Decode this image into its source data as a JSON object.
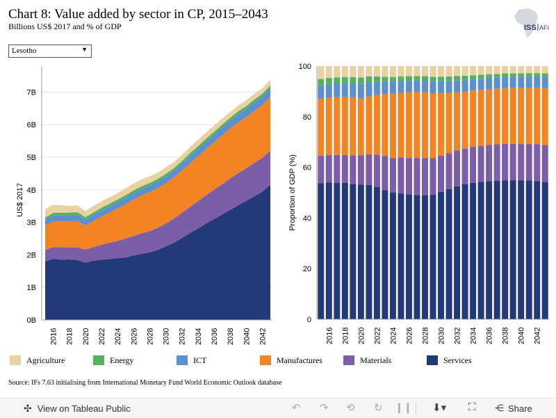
{
  "header": {
    "title": "Chart 8: Value added by sector in CP, 2015–2043",
    "subtitle": "Billions US$ 2017 and % of GDP",
    "logo_text": "ISS|AFI"
  },
  "filter": {
    "selected": "Lesotho"
  },
  "colors": {
    "Services": "#23397a",
    "Materials": "#7b5ea7",
    "Manufactures": "#f28423",
    "ICT": "#5b8fcf",
    "Energy": "#55b160",
    "Agriculture": "#e8d2a1"
  },
  "chart_data": [
    {
      "type": "area",
      "stacked": true,
      "ylabel": "US$ 2017",
      "yticks": [
        "0B",
        "1B",
        "2B",
        "3B",
        "4B",
        "5B",
        "6B",
        "7B"
      ],
      "ylim": [
        0,
        7.8
      ],
      "xticks": [
        "2016",
        "2018",
        "2020",
        "2022",
        "2024",
        "2026",
        "2028",
        "2030",
        "2032",
        "2034",
        "2036",
        "2038",
        "2040",
        "2042"
      ],
      "x": [
        2015,
        2016,
        2017,
        2018,
        2019,
        2020,
        2021,
        2022,
        2023,
        2024,
        2025,
        2026,
        2027,
        2028,
        2029,
        2030,
        2031,
        2032,
        2033,
        2034,
        2035,
        2036,
        2037,
        2038,
        2039,
        2040,
        2041,
        2042,
        2043
      ],
      "series": [
        {
          "name": "Services",
          "values": [
            1.8,
            1.88,
            1.85,
            1.86,
            1.84,
            1.76,
            1.82,
            1.85,
            1.87,
            1.9,
            1.92,
            1.98,
            2.03,
            2.08,
            2.15,
            2.26,
            2.37,
            2.52,
            2.67,
            2.81,
            2.96,
            3.1,
            3.24,
            3.38,
            3.52,
            3.66,
            3.8,
            3.94,
            4.15
          ]
        },
        {
          "name": "Materials",
          "values": [
            0.35,
            0.36,
            0.38,
            0.37,
            0.39,
            0.4,
            0.42,
            0.46,
            0.5,
            0.53,
            0.58,
            0.6,
            0.63,
            0.65,
            0.68,
            0.7,
            0.74,
            0.77,
            0.8,
            0.84,
            0.87,
            0.9,
            0.93,
            0.96,
            0.99,
            1.0,
            1.02,
            1.04,
            1.05
          ]
        },
        {
          "name": "Manufactures",
          "values": [
            0.75,
            0.79,
            0.8,
            0.8,
            0.81,
            0.74,
            0.8,
            0.87,
            0.93,
            1.0,
            1.05,
            1.12,
            1.17,
            1.2,
            1.22,
            1.24,
            1.26,
            1.3,
            1.34,
            1.38,
            1.42,
            1.46,
            1.5,
            1.54,
            1.56,
            1.57,
            1.6,
            1.62,
            1.65
          ]
        },
        {
          "name": "ICT",
          "values": [
            0.17,
            0.18,
            0.18,
            0.19,
            0.19,
            0.18,
            0.18,
            0.19,
            0.19,
            0.19,
            0.2,
            0.2,
            0.2,
            0.2,
            0.2,
            0.21,
            0.21,
            0.21,
            0.22,
            0.22,
            0.23,
            0.23,
            0.24,
            0.24,
            0.25,
            0.25,
            0.26,
            0.26,
            0.27
          ]
        },
        {
          "name": "Energy",
          "values": [
            0.08,
            0.08,
            0.08,
            0.08,
            0.08,
            0.08,
            0.08,
            0.08,
            0.08,
            0.08,
            0.08,
            0.08,
            0.08,
            0.08,
            0.08,
            0.08,
            0.08,
            0.08,
            0.09,
            0.09,
            0.09,
            0.09,
            0.09,
            0.09,
            0.09,
            0.09,
            0.09,
            0.09,
            0.09
          ]
        },
        {
          "name": "Agriculture",
          "values": [
            0.25,
            0.25,
            0.23,
            0.2,
            0.21,
            0.19,
            0.2,
            0.2,
            0.2,
            0.2,
            0.21,
            0.21,
            0.21,
            0.2,
            0.2,
            0.2,
            0.19,
            0.19,
            0.19,
            0.19,
            0.19,
            0.19,
            0.19,
            0.18,
            0.18,
            0.18,
            0.18,
            0.17,
            0.17
          ]
        }
      ]
    },
    {
      "type": "bar",
      "stacked": true,
      "ylabel": "Proportion of GDP (%)",
      "yticks": [
        "0",
        "20",
        "40",
        "60",
        "80",
        "100"
      ],
      "ylim": [
        0,
        100
      ],
      "xticks": [
        "2016",
        "2018",
        "2020",
        "2022",
        "2024",
        "2026",
        "2028",
        "2030",
        "2032",
        "2034",
        "2036",
        "2038",
        "2040",
        "2042"
      ],
      "x": [
        2015,
        2016,
        2017,
        2018,
        2019,
        2020,
        2021,
        2022,
        2023,
        2024,
        2025,
        2026,
        2027,
        2028,
        2029,
        2030,
        2031,
        2032,
        2033,
        2034,
        2035,
        2036,
        2037,
        2038,
        2039,
        2040,
        2041,
        2042,
        2043
      ],
      "series": [
        {
          "name": "Services",
          "values": [
            53.8,
            54.0,
            53.9,
            53.9,
            53.4,
            53.2,
            53.1,
            52.2,
            51.0,
            50.0,
            49.7,
            49.3,
            49.1,
            49.0,
            49.2,
            50.3,
            51.4,
            52.5,
            53.3,
            53.9,
            54.3,
            54.6,
            54.7,
            54.8,
            54.8,
            54.8,
            54.8,
            54.6,
            54.2
          ]
        },
        {
          "name": "Materials",
          "values": [
            10.8,
            10.9,
            11.0,
            11.0,
            11.4,
            11.6,
            12.0,
            12.8,
            13.5,
            13.6,
            14.2,
            14.4,
            14.6,
            14.6,
            14.4,
            14.3,
            14.2,
            14.2,
            14.1,
            14.2,
            14.2,
            14.3,
            14.4,
            14.5,
            14.5,
            14.4,
            14.4,
            14.6,
            14.6
          ]
        },
        {
          "name": "Manufactures",
          "values": [
            22.5,
            22.7,
            22.8,
            22.9,
            22.9,
            22.4,
            22.9,
            23.6,
            24.5,
            25.5,
            25.5,
            25.9,
            26.1,
            26.0,
            25.7,
            24.8,
            23.8,
            23.0,
            22.5,
            22.2,
            22.1,
            22.0,
            22.0,
            22.0,
            22.1,
            22.2,
            22.2,
            22.3,
            22.5
          ]
        },
        {
          "name": "ICT",
          "values": [
            5.3,
            5.3,
            5.4,
            5.5,
            5.4,
            5.7,
            5.4,
            5.1,
            4.8,
            4.7,
            4.7,
            4.6,
            4.5,
            4.5,
            4.6,
            4.6,
            4.6,
            4.6,
            4.5,
            4.4,
            4.4,
            4.3,
            4.3,
            4.3,
            4.3,
            4.3,
            4.4,
            4.4,
            4.5
          ]
        },
        {
          "name": "Energy",
          "values": [
            2.5,
            2.4,
            2.4,
            2.4,
            2.5,
            2.6,
            2.5,
            2.2,
            2.0,
            1.9,
            1.8,
            1.8,
            1.8,
            1.9,
            1.9,
            1.8,
            1.9,
            1.8,
            1.8,
            1.7,
            1.6,
            1.6,
            1.5,
            1.5,
            1.4,
            1.4,
            1.4,
            1.3,
            1.3
          ]
        },
        {
          "name": "Agriculture",
          "values": [
            5.1,
            4.7,
            4.5,
            4.3,
            4.4,
            4.5,
            4.1,
            4.1,
            4.2,
            4.3,
            4.1,
            4.0,
            3.9,
            4.0,
            4.2,
            4.2,
            4.1,
            3.9,
            3.8,
            3.6,
            3.4,
            3.2,
            3.1,
            2.9,
            2.9,
            2.9,
            2.8,
            2.8,
            2.9
          ]
        }
      ]
    }
  ],
  "legend": [
    {
      "label": "Agriculture",
      "color": "#e8d2a1"
    },
    {
      "label": "Energy",
      "color": "#55b160"
    },
    {
      "label": "ICT",
      "color": "#5b8fcf"
    },
    {
      "label": "Manufactures",
      "color": "#f28423"
    },
    {
      "label": "Materials",
      "color": "#7b5ea7"
    },
    {
      "label": "Services",
      "color": "#23397a"
    }
  ],
  "source": "Source: IFs 7.63 initialising from International Monetary Fund World Economic Outlook database",
  "toolbar": {
    "view_label": "View on Tableau Public",
    "share_label": "Share"
  }
}
